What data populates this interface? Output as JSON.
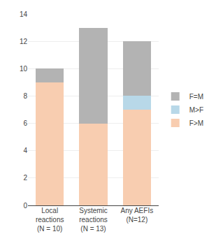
{
  "chart_data": {
    "type": "bar",
    "categories": [
      "Local\nreactions\n(N = 10)",
      "Systemic\nreactions\n(N = 13)",
      "Any AEFIs\n(N=12)"
    ],
    "series": [
      {
        "name": "F>M",
        "color": "#f8cdb0",
        "values": [
          9,
          6,
          7
        ]
      },
      {
        "name": "M>F",
        "color": "#b8d8e8",
        "values": [
          0,
          0,
          1
        ]
      },
      {
        "name": "F=M",
        "color": "#b3b3b3",
        "values": [
          1,
          7,
          4
        ]
      }
    ],
    "stacked": true,
    "ylim": [
      0,
      14
    ],
    "yticks": [
      0,
      2,
      4,
      6,
      8,
      10,
      12,
      14
    ],
    "grid": true,
    "legend": "right"
  }
}
